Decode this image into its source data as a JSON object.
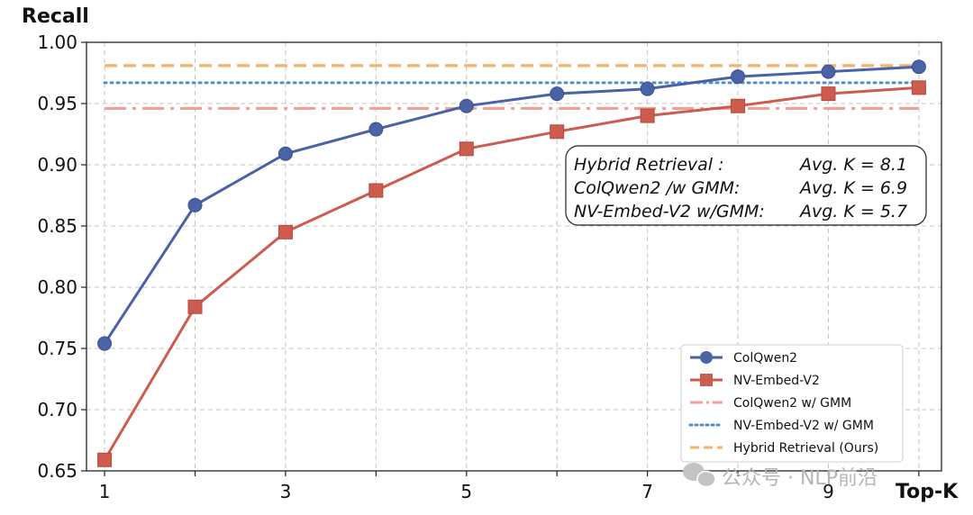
{
  "chart_data": {
    "type": "line",
    "title": "",
    "xlabel": "Top-K",
    "ylabel": "Recall",
    "xlim": [
      0.8,
      10.25
    ],
    "ylim": [
      0.65,
      1.0
    ],
    "x": [
      1,
      2,
      3,
      4,
      5,
      6,
      7,
      8,
      9,
      10
    ],
    "x_tick_values": [
      1,
      2,
      3,
      4,
      5,
      6,
      7,
      8,
      9,
      10
    ],
    "x_tick_labels": [
      "1",
      "",
      "3",
      "",
      "5",
      "",
      "7",
      "",
      "9",
      ""
    ],
    "y_ticks": [
      "0.65",
      "0.70",
      "0.75",
      "0.80",
      "0.85",
      "0.90",
      "0.95",
      "1.00"
    ],
    "grid": true,
    "series": [
      {
        "name": "ColQwen2",
        "color": "#4a62a6",
        "marker": "circle",
        "values": [
          0.754,
          0.867,
          0.909,
          0.929,
          0.948,
          0.958,
          0.962,
          0.972,
          0.976,
          0.98
        ]
      },
      {
        "name": "NV-Embed-V2",
        "color": "#cd5b4e",
        "marker": "square",
        "values": [
          0.659,
          0.784,
          0.845,
          0.879,
          0.913,
          0.927,
          0.94,
          0.948,
          0.958,
          0.963
        ]
      }
    ],
    "reference_lines": [
      {
        "name": "ColQwen2 w/ GMM",
        "color": "#f0a096",
        "style": "dashdot",
        "y": 0.946
      },
      {
        "name": "NV-Embed-V2 w/ GMM",
        "color": "#4d8fc7",
        "style": "dotted",
        "y": 0.967
      },
      {
        "name": "Hybrid Retrieval (Ours)",
        "color": "#f2b36b",
        "style": "dashed",
        "y": 0.981
      }
    ],
    "annotation": {
      "rows": [
        {
          "label": "Hybrid Retrieval :",
          "value": "Avg. K = 8.1"
        },
        {
          "label": "ColQwen2 /w GMM:",
          "value": "Avg. K = 6.9"
        },
        {
          "label": "NV-Embed-V2 w/GMM:",
          "value": "Avg. K = 5.7"
        }
      ]
    },
    "legend_position": "lower-right"
  },
  "watermark": {
    "text": "公众号 · NLP前沿",
    "icon": "wechat-icon"
  }
}
